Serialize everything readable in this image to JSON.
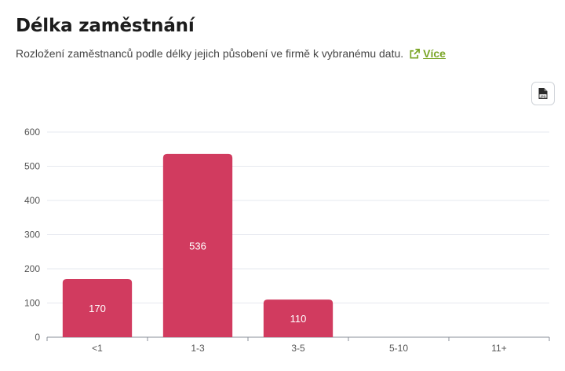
{
  "header": {
    "title": "Délka zaměstnání",
    "subtitle": "Rozložení zaměstnanců podle délky jejich působení ve firmě k vybranému datu.",
    "more_link": "Více"
  },
  "toolbar": {
    "export_icon": "file-jpg-icon",
    "export_badge": "JPG"
  },
  "colors": {
    "bar": "#d13b5f",
    "accent": "#7aa526",
    "grid": "#e6e8ef"
  },
  "chart_data": {
    "type": "bar",
    "categories": [
      "<1",
      "1-3",
      "3-5",
      "5-10",
      "11+"
    ],
    "values": [
      170,
      536,
      110,
      0,
      0
    ],
    "data_labels": [
      "170",
      "536",
      "110",
      "",
      ""
    ],
    "title": "",
    "xlabel": "",
    "ylabel": "",
    "ylim": [
      0,
      600
    ],
    "yticks": [
      0,
      100,
      200,
      300,
      400,
      500,
      600
    ],
    "grid": true,
    "legend": "none"
  }
}
